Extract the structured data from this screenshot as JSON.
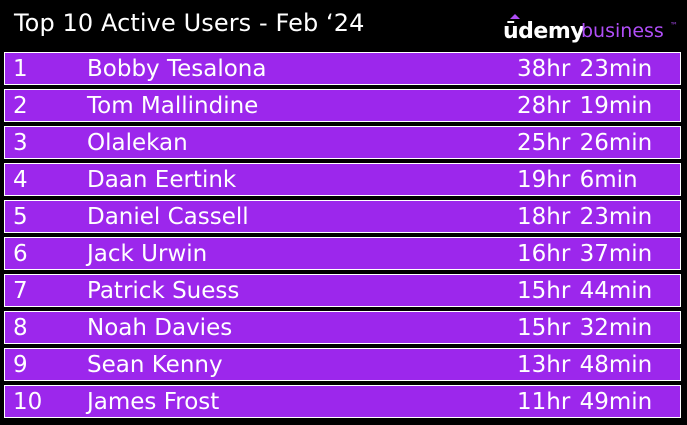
{
  "header": {
    "title": "Top 10 Active Users - Feb ‘24",
    "brand": {
      "udemy": "ūdemy",
      "business": "business",
      "tm": "™"
    }
  },
  "colors": {
    "background": "#000000",
    "row_fill": "#9c27ec",
    "row_border": "#ffffff",
    "brand_accent": "#b04ef7",
    "text": "#ffffff"
  },
  "rows": [
    {
      "rank": "1",
      "name": "Bobby Tesalona",
      "time": "38hr  23min"
    },
    {
      "rank": "2",
      "name": "Tom Mallindine",
      "time": "28hr  19min"
    },
    {
      "rank": "3",
      "name": "Olalekan",
      "time": "25hr  26min"
    },
    {
      "rank": "4",
      "name": "Daan Eertink",
      "time": "19hr  6min"
    },
    {
      "rank": "5",
      "name": "Daniel Cassell",
      "time": "18hr  23min"
    },
    {
      "rank": "6",
      "name": "Jack Urwin",
      "time": "16hr  37min"
    },
    {
      "rank": "7",
      "name": "Patrick Suess",
      "time": "15hr  44min"
    },
    {
      "rank": "8",
      "name": "Noah Davies",
      "time": "15hr  32min"
    },
    {
      "rank": "9",
      "name": "Sean Kenny",
      "time": "13hr  48min"
    },
    {
      "rank": "10",
      "name": "James Frost",
      "time": "11hr  49min"
    }
  ]
}
